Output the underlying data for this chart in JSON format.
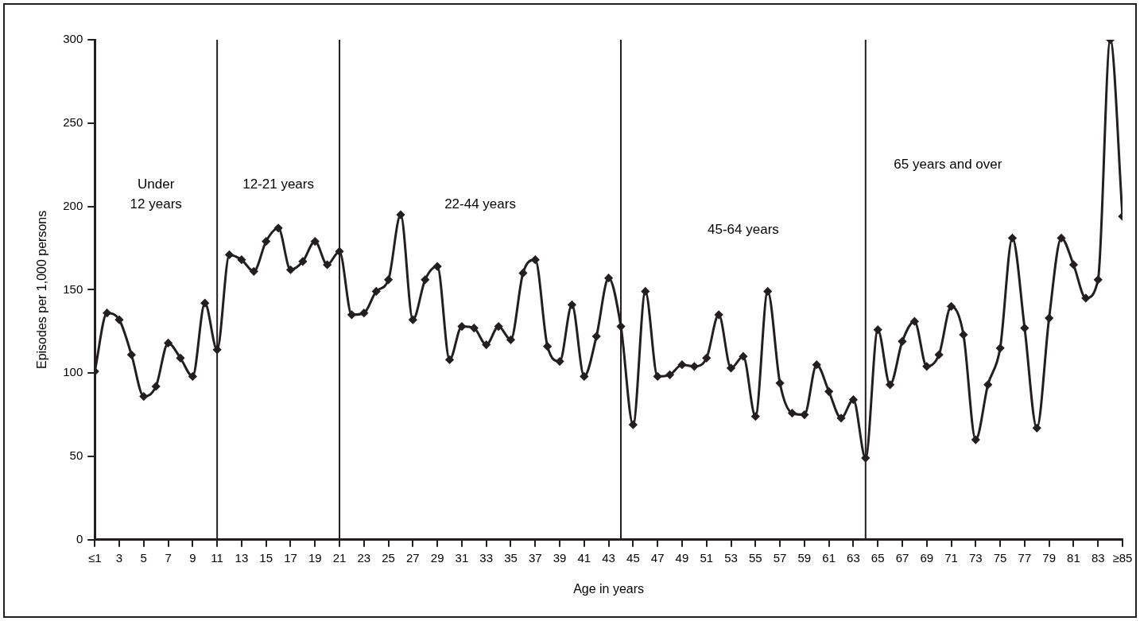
{
  "chart_data": {
    "type": "line",
    "xlabel": "Age in years",
    "ylabel": "Episodes per 1,000 persons",
    "x": [
      1,
      2,
      3,
      4,
      5,
      6,
      7,
      8,
      9,
      10,
      11,
      12,
      13,
      14,
      15,
      16,
      17,
      18,
      19,
      20,
      21,
      22,
      23,
      24,
      25,
      26,
      27,
      28,
      29,
      30,
      31,
      32,
      33,
      34,
      35,
      36,
      37,
      38,
      39,
      40,
      41,
      42,
      43,
      44,
      45,
      46,
      47,
      48,
      49,
      50,
      51,
      52,
      53,
      54,
      55,
      56,
      57,
      58,
      59,
      60,
      61,
      62,
      63,
      64,
      65,
      66,
      67,
      68,
      69,
      70,
      71,
      72,
      73,
      74,
      75,
      76,
      77,
      78,
      79,
      80,
      81,
      82,
      83,
      84,
      85
    ],
    "series": [
      {
        "color": "#231f20",
        "values": [
          101,
          136,
          132,
          111,
          86,
          92,
          118,
          109,
          98,
          142,
          114,
          171,
          168,
          161,
          179,
          187,
          162,
          167,
          179,
          165,
          173,
          135,
          136,
          149,
          156,
          195,
          132,
          156,
          164,
          108,
          128,
          127,
          117,
          128,
          120,
          160,
          168,
          116,
          107,
          141,
          98,
          122,
          157,
          128,
          69,
          149,
          98,
          99,
          105,
          104,
          109,
          135,
          103,
          110,
          74,
          149,
          94,
          76,
          75,
          105,
          89,
          73,
          84,
          49,
          126,
          93,
          119,
          131,
          104,
          111,
          140,
          123,
          60,
          93,
          115,
          181,
          127,
          67,
          133,
          181,
          165,
          145,
          156,
          300,
          194
        ]
      }
    ],
    "xlim": [
      1,
      85
    ],
    "xticks": [
      {
        "value": 1,
        "label": "≤1"
      },
      3,
      5,
      7,
      9,
      11,
      13,
      15,
      17,
      19,
      21,
      23,
      25,
      27,
      29,
      31,
      33,
      35,
      37,
      39,
      41,
      43,
      45,
      47,
      49,
      51,
      53,
      55,
      57,
      59,
      61,
      63,
      65,
      67,
      69,
      71,
      73,
      75,
      77,
      79,
      81,
      83,
      {
        "value": 85,
        "label": "≥85"
      }
    ],
    "ylim": [
      0,
      300
    ],
    "yticks": [
      0,
      50,
      100,
      150,
      200,
      250,
      300
    ],
    "ref_lines": [
      {
        "axis": "x",
        "value": 11,
        "color": "#231f20"
      },
      {
        "axis": "x",
        "value": 21,
        "color": "#231f20"
      },
      {
        "axis": "x",
        "value": 44,
        "color": "#231f20"
      },
      {
        "axis": "x",
        "value": 64,
        "color": "#231f20"
      }
    ],
    "annotations": [
      "Under\n12 years",
      "12-21 years",
      "22-44 years",
      "45-64 years",
      "65 years and over"
    ],
    "grid": false,
    "legend": false,
    "marker": "diamond",
    "line_style": "solid"
  }
}
